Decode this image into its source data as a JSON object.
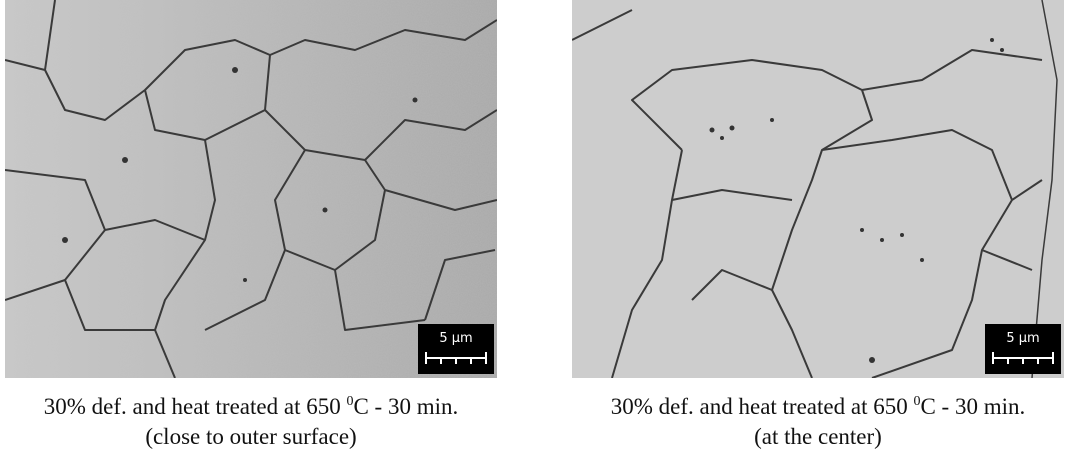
{
  "panels": [
    {
      "scale_bar": "5 µm",
      "caption": {
        "line1_text": "30% def. and heat treated at 650 ",
        "line1_superscript": "0",
        "line1_unit": "C - 30 min.",
        "line2": "(close to outer surface)"
      }
    },
    {
      "scale_bar": "5 µm",
      "caption": {
        "line1_text": "30% def. and heat treated at 650 ",
        "line1_superscript": "0",
        "line1_unit": "C - 30 min.",
        "line2": "(at the center)"
      }
    }
  ]
}
